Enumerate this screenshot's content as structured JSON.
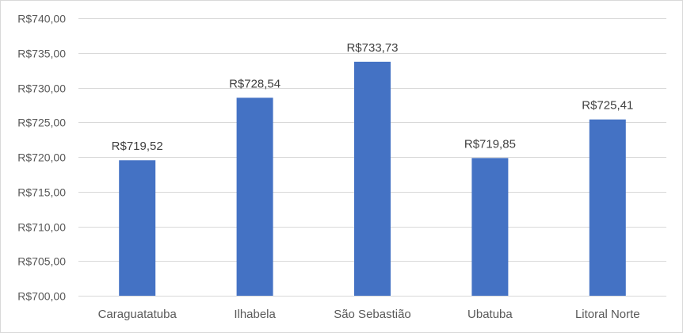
{
  "chart_data": {
    "type": "bar",
    "categories": [
      "Caraguatatuba",
      "Ilhabela",
      "São Sebastião",
      "Ubatuba",
      "Litoral Norte"
    ],
    "values": [
      719.52,
      728.54,
      733.73,
      719.85,
      725.41
    ],
    "data_labels": [
      "R$719,52",
      "R$728,54",
      "R$733,73",
      "R$719,85",
      "R$725,41"
    ],
    "ylim": [
      700,
      740
    ],
    "ytick_values": [
      700,
      705,
      710,
      715,
      720,
      725,
      730,
      735,
      740
    ],
    "ytick_labels": [
      "R$700,00",
      "R$705,00",
      "R$710,00",
      "R$715,00",
      "R$720,00",
      "R$725,00",
      "R$730,00",
      "R$735,00",
      "R$740,00"
    ],
    "grid": true,
    "bar_color": "#4472c4",
    "title": "",
    "xlabel": "",
    "ylabel": ""
  }
}
